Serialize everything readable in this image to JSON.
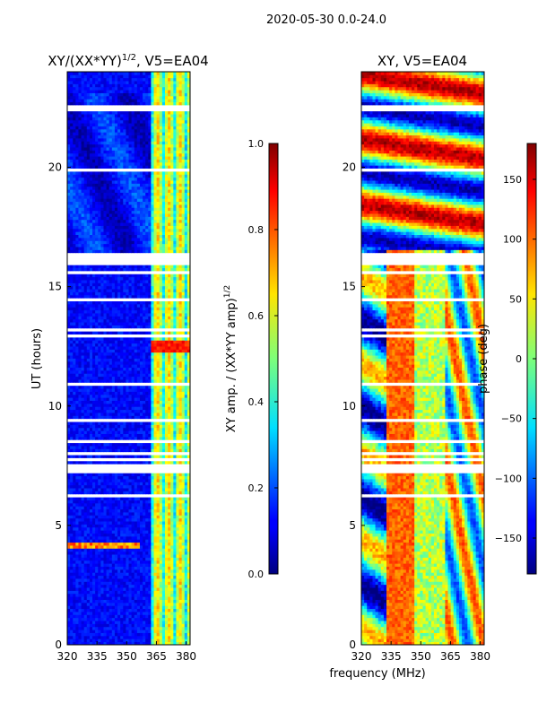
{
  "suptitle": "2020-05-30 0.0-24.0",
  "xlabel_shared": "frequency (MHz)",
  "ylabel_shared": "UT (hours)",
  "chart_data": [
    {
      "type": "heatmap",
      "title_main": "XY/(XX*YY)",
      "title_exp": "1/2",
      "title_tail": ", V5=EA04",
      "x_range": [
        320,
        382
      ],
      "x_ticks": [
        320,
        335,
        350,
        365,
        380
      ],
      "y_range": [
        0,
        24
      ],
      "y_ticks": [
        0,
        5,
        10,
        15,
        20
      ],
      "colormap": "jet",
      "colorbar": {
        "range": [
          0.0,
          1.0
        ],
        "ticks": [
          "0.0",
          "0.2",
          "0.4",
          "0.6",
          "0.8",
          "1.0"
        ],
        "label_main": "XY amp. / (XX*YY amp)",
        "label_exp": "1/2"
      }
    },
    {
      "type": "heatmap",
      "title_main": "XY, V5=EA04",
      "x_range": [
        320,
        382
      ],
      "x_ticks": [
        320,
        335,
        350,
        365,
        380
      ],
      "y_range": [
        0,
        24
      ],
      "y_ticks": [
        0,
        5,
        10,
        15,
        20
      ],
      "colormap": "jet",
      "colorbar": {
        "range": [
          -180,
          180
        ],
        "ticks": [
          "−150",
          "−100",
          "−50",
          "0",
          "50",
          "100",
          "150"
        ],
        "label_main": "phase (deg)"
      }
    }
  ],
  "colors": {
    "axis": "#000000",
    "gap": "#ffffff"
  }
}
